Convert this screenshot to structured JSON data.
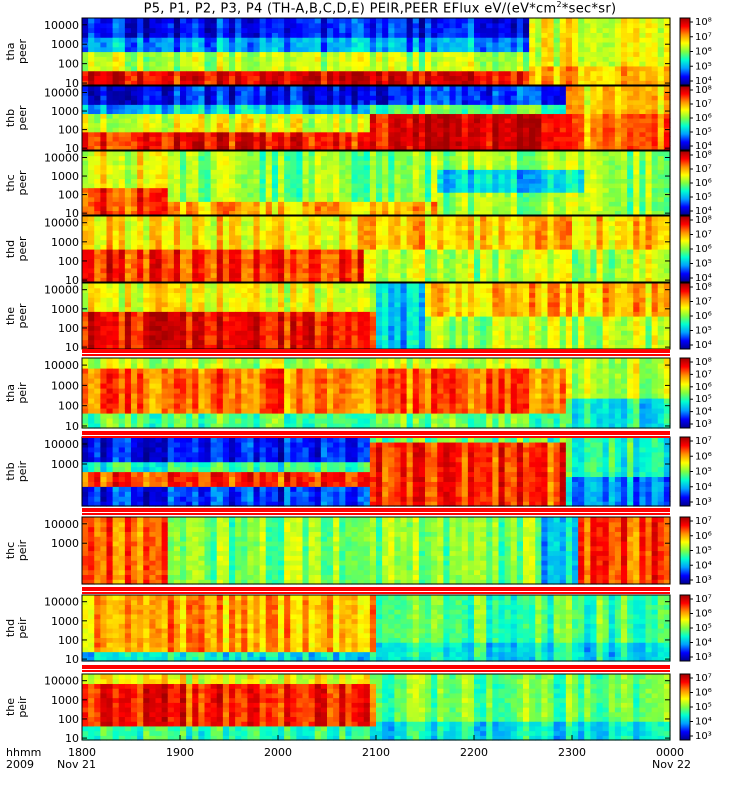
{
  "chart_data": {
    "type": "heatmap",
    "title_main": "P5, P1, P2, P3, P4 (TH-A,B,C,D,E) PEIR,PEER EFlux eV/(eV*cm",
    "title_sup": "2",
    "title_tail": "*sec*sr)",
    "x_tick_labels": [
      "1800",
      "1900",
      "2000",
      "2100",
      "2200",
      "2300",
      "0000"
    ],
    "x_range_hours": [
      18,
      24
    ],
    "x_axis_row1_label": "hhmm",
    "x_axis_row2_label": "2009",
    "date_start": "Nov 21",
    "date_end": "Nov 22",
    "y_scale": "log",
    "colorbar_scale": "log",
    "colormap": [
      "#00008c",
      "#0000ff",
      "#00a0ff",
      "#00ffd0",
      "#80ff40",
      "#ffff00",
      "#ff9000",
      "#ff0000",
      "#a00000"
    ],
    "panels": [
      {
        "probe": "tha",
        "species": "peer",
        "y_ticks": [
          "10",
          "100",
          "1000",
          "10000"
        ],
        "colorbar_ticks": [
          "10⁴",
          "10⁵",
          "10⁶",
          "10⁷",
          "10⁸"
        ]
      },
      {
        "probe": "thb",
        "species": "peer",
        "y_ticks": [
          "10",
          "100",
          "1000",
          "10000"
        ],
        "colorbar_ticks": [
          "10⁴",
          "10⁵",
          "10⁶",
          "10⁷",
          "10⁸"
        ]
      },
      {
        "probe": "thc",
        "species": "peer",
        "y_ticks": [
          "10",
          "100",
          "1000",
          "10000"
        ],
        "colorbar_ticks": [
          "10⁴",
          "10⁵",
          "10⁶",
          "10⁷",
          "10⁸"
        ]
      },
      {
        "probe": "thd",
        "species": "peer",
        "y_ticks": [
          "10",
          "100",
          "1000",
          "10000"
        ],
        "colorbar_ticks": [
          "10⁴",
          "10⁵",
          "10⁶",
          "10⁷",
          "10⁸"
        ]
      },
      {
        "probe": "the",
        "species": "peer",
        "y_ticks": [
          "10",
          "100",
          "1000",
          "10000"
        ],
        "colorbar_ticks": [
          "10⁴",
          "10⁵",
          "10⁶",
          "10⁷",
          "10⁸"
        ]
      },
      {
        "probe": "tha",
        "species": "peir",
        "y_ticks": [
          "10",
          "100",
          "1000",
          "10000"
        ],
        "colorbar_ticks": [
          "10³",
          "10⁴",
          "10⁵",
          "10⁶",
          "10⁷",
          "10⁸"
        ]
      },
      {
        "probe": "thb",
        "species": "peir",
        "y_ticks": [
          "1000",
          "10000"
        ],
        "colorbar_ticks": [
          "10³",
          "10⁴",
          "10⁵",
          "10⁶",
          "10⁷"
        ]
      },
      {
        "probe": "thc",
        "species": "peir",
        "y_ticks": [
          "1000",
          "10000"
        ],
        "colorbar_ticks": [
          "10³",
          "10⁴",
          "10⁵",
          "10⁶",
          "10⁷"
        ]
      },
      {
        "probe": "thd",
        "species": "peir",
        "y_ticks": [
          "10",
          "100",
          "1000",
          "10000"
        ],
        "colorbar_ticks": [
          "10³",
          "10⁴",
          "10⁵",
          "10⁶",
          "10⁷"
        ]
      },
      {
        "probe": "the",
        "species": "peir",
        "y_ticks": [
          "10",
          "100",
          "1000",
          "10000"
        ],
        "colorbar_ticks": [
          "10³",
          "10⁴",
          "10⁵",
          "10⁶",
          "10⁷"
        ]
      }
    ]
  }
}
